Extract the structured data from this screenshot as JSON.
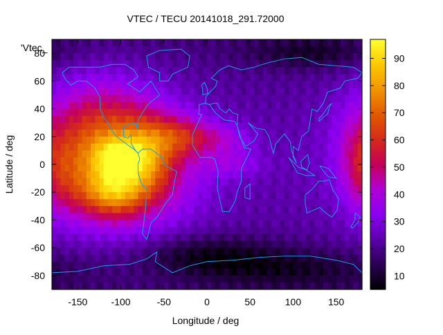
{
  "chart_data": {
    "type": "heatmap",
    "title": "VTEC / TECU 20141018_291.72000",
    "xlabel": "Longitude / deg",
    "ylabel": "Latitude / deg",
    "xlim": [
      -180,
      180
    ],
    "ylim": [
      -90,
      90
    ],
    "x_ticks": [
      -150,
      -100,
      -50,
      0,
      50,
      100,
      150
    ],
    "y_ticks": [
      -80,
      -60,
      -40,
      -20,
      0,
      20,
      40,
      60,
      80
    ],
    "colorbar": {
      "range": [
        5,
        97
      ],
      "ticks": [
        10,
        20,
        30,
        40,
        50,
        60,
        70,
        80,
        90
      ],
      "palette": [
        "#000000",
        "#2a0050",
        "#5a00a8",
        "#8a00f0",
        "#b000d8",
        "#c4005a",
        "#d42a1a",
        "#e05a00",
        "#f09400",
        "#fcc800",
        "#ffff30"
      ]
    },
    "legend_key": "'Vtec_",
    "coastline_color": "#1a9ee6",
    "blobs": [
      {
        "lon": -100,
        "lat": 0,
        "sx": 55,
        "sy": 30,
        "amp": 42
      },
      {
        "lon": -130,
        "lat": 30,
        "sx": 45,
        "sy": 25,
        "amp": 18
      },
      {
        "lon": -110,
        "lat": -20,
        "sx": 25,
        "sy": 12,
        "amp": 30
      },
      {
        "lon": -105,
        "lat": 5,
        "sx": 20,
        "sy": 10,
        "amp": 25
      },
      {
        "lon": -70,
        "lat": 5,
        "sx": 20,
        "sy": 18,
        "amp": 20
      },
      {
        "lon": -30,
        "lat": 20,
        "sx": 25,
        "sy": 10,
        "amp": 22
      },
      {
        "lon": 20,
        "lat": 18,
        "sx": 25,
        "sy": 8,
        "amp": 12
      },
      {
        "lon": 30,
        "lat": 0,
        "sx": 25,
        "sy": 7,
        "amp": 10
      },
      {
        "lon": -165,
        "lat": -10,
        "sx": 20,
        "sy": 20,
        "amp": 12
      },
      {
        "lon": 175,
        "lat": 5,
        "sx": 15,
        "sy": 20,
        "amp": 10
      },
      {
        "lon": 0,
        "lat": -65,
        "sx": 60,
        "sy": 10,
        "amp": -12
      },
      {
        "lon": 100,
        "lat": -75,
        "sx": 80,
        "sy": 10,
        "amp": -10
      },
      {
        "lon": 120,
        "lat": 80,
        "sx": 50,
        "sy": 8,
        "amp": -10
      }
    ]
  }
}
